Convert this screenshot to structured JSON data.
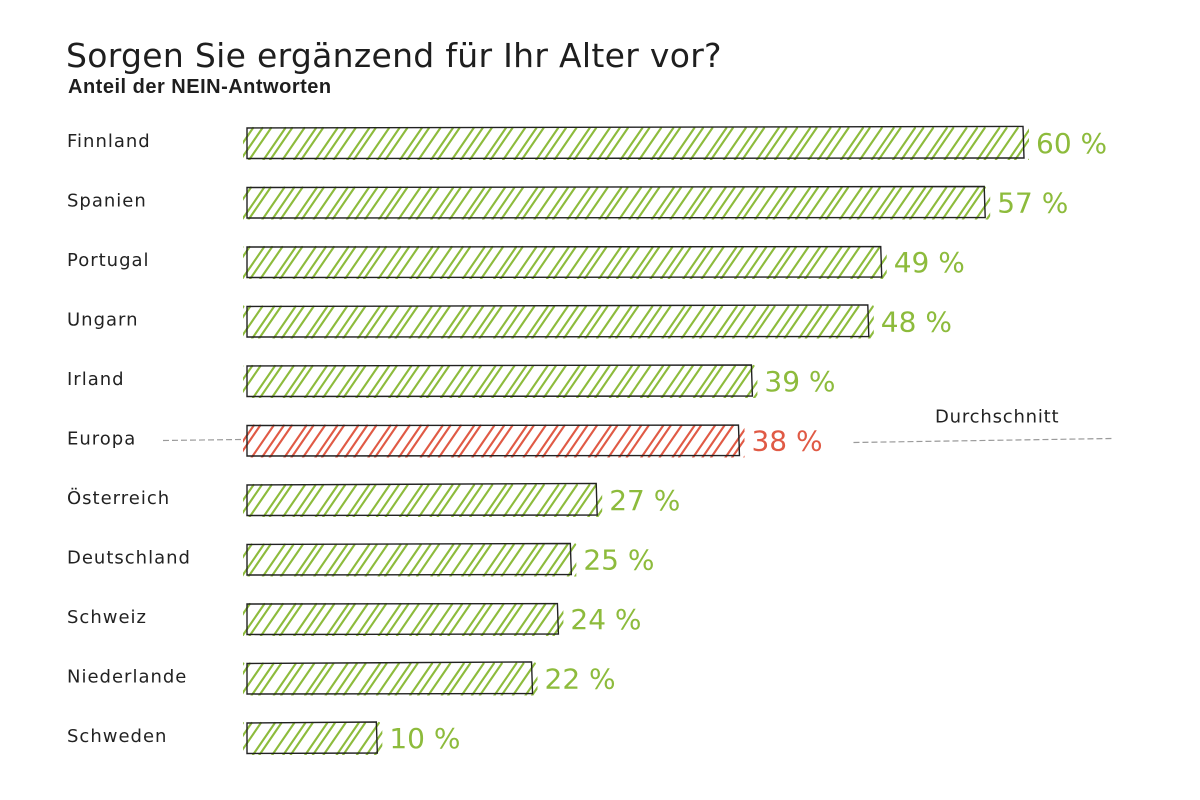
{
  "chart_data": {
    "type": "bar",
    "orientation": "horizontal",
    "title": "Sorgen Sie ergänzend für Ihr Alter vor?",
    "subtitle": "Anteil der NEIN-Antworten",
    "categories": [
      "Finnland",
      "Spanien",
      "Portugal",
      "Ungarn",
      "Irland",
      "Europa",
      "Österreich",
      "Deutschland",
      "Schweiz",
      "Niederlande",
      "Schweden"
    ],
    "values": [
      60,
      57,
      49,
      48,
      39,
      38,
      27,
      25,
      24,
      22,
      10
    ],
    "value_labels": [
      "60 %",
      "57 %",
      "49 %",
      "48 %",
      "39 %",
      "38 %",
      "27 %",
      "25 %",
      "24 %",
      "22 %",
      "10 %"
    ],
    "highlight_category": "Europa",
    "average_annotation": "Durchschnitt",
    "xlim": [
      0,
      60
    ],
    "grid": false,
    "colors": {
      "bar_fill": "#8dbb3c",
      "value_text": "#8dbb3c",
      "highlight_fill": "#e05a45",
      "highlight_text": "#e05a45",
      "outline": "#222222",
      "dashed_line": "#9a9a9a"
    }
  }
}
